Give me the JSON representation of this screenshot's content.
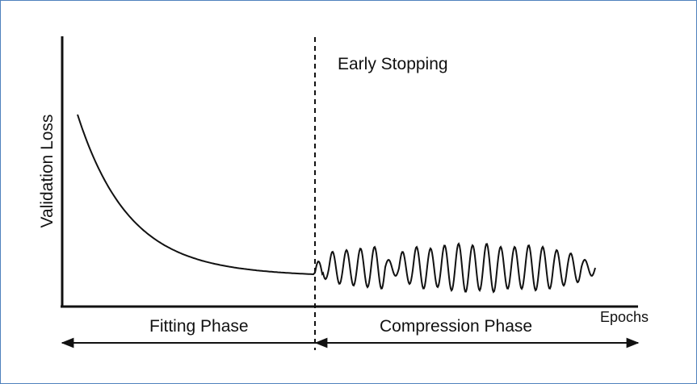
{
  "diagram": {
    "y_axis_label": "Validation Loss",
    "x_axis_label": "Epochs",
    "marker_label": "Early Stopping",
    "phase_left_label": "Fitting Phase",
    "phase_right_label": "Compression Phase",
    "colors": {
      "border": "#4f81bd",
      "ink": "#111111",
      "background": "#ffffff"
    }
  }
}
